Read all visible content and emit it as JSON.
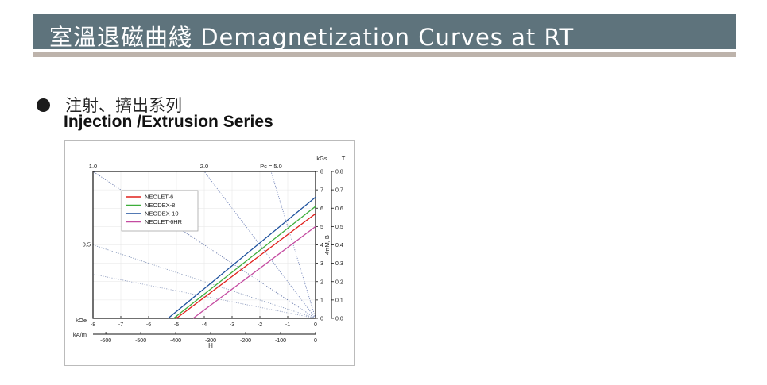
{
  "header": {
    "title": "室溫退磁曲綫   Demagnetization Curves at RT",
    "colors": {
      "banner": "#5e737c",
      "rule": "#bdb3ab"
    }
  },
  "section": {
    "title_cn": "注射、擠出系列",
    "title_en": "Injection /Extrusion Series"
  },
  "chart_data": {
    "type": "line",
    "x_axis_koe": {
      "label": "kOe",
      "range": [
        -8,
        0
      ],
      "ticks": [
        -8,
        -7,
        -6,
        -5,
        -4,
        -3,
        -2,
        -1,
        0
      ]
    },
    "x_axis_kam": {
      "label": "kA/m",
      "ticks": [
        -600,
        -500,
        -400,
        -300,
        -200,
        -100,
        0
      ]
    },
    "xlabel": "H",
    "y_axis_kgs": {
      "label": "kGs",
      "range": [
        0,
        8
      ],
      "ticks": [
        0,
        1,
        2,
        3,
        4,
        5,
        6,
        7,
        8
      ]
    },
    "y_axis_t": {
      "label": "T",
      "ticks": [
        "0.0",
        "0.1",
        "0.2",
        "0.3",
        "0.4",
        "0.5",
        "0.6",
        "0.7",
        "0.8"
      ]
    },
    "ylabel": "4πM, B",
    "grid": true,
    "legend_position": "top-left",
    "series": [
      {
        "name": "NEOLET-6",
        "color": "#e0201c",
        "x": [
          -5.0,
          0
        ],
        "y": [
          0,
          5.7
        ]
      },
      {
        "name": "NEODEX-8",
        "color": "#3dae3a",
        "x": [
          -5.1,
          0
        ],
        "y": [
          0,
          6.1
        ]
      },
      {
        "name": "NEODEX-10",
        "color": "#1b4f9c",
        "x": [
          -5.3,
          0
        ],
        "y": [
          0,
          6.6
        ]
      },
      {
        "name": "NEOLET-6HR",
        "color": "#c44aa0",
        "x": [
          -4.4,
          0
        ],
        "y": [
          0,
          5.0
        ]
      }
    ],
    "permeance_lines": [
      {
        "label": "1.0",
        "slope": -1.0
      },
      {
        "label": "2.0",
        "slope": -2.0
      },
      {
        "label": "Pc = 5.0",
        "slope": -5.0
      },
      {
        "label": "0.5",
        "slope": -0.5
      },
      {
        "label": "",
        "slope": -0.3
      }
    ]
  }
}
